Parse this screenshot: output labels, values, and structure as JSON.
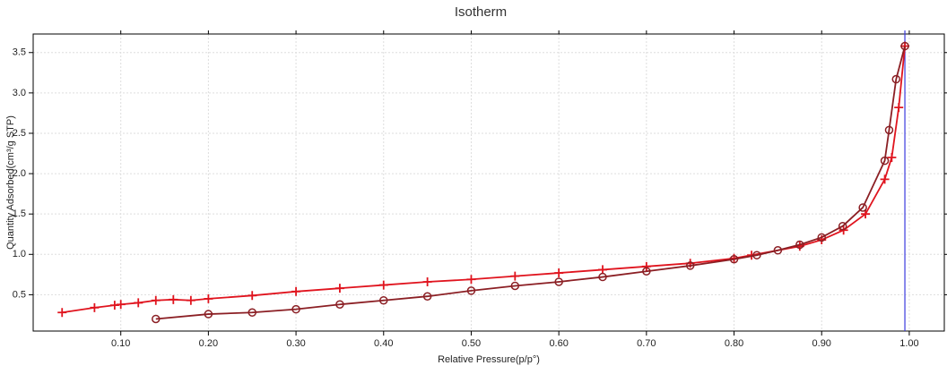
{
  "chart_data": {
    "type": "line",
    "title": "Isotherm",
    "xlabel": "Relative Pressure(p/p°)",
    "ylabel": "Quantity Adsorbed(cm³/g STP)",
    "xlim": [
      0,
      1.04
    ],
    "ylim": [
      0.05,
      3.73
    ],
    "xticks": [
      {
        "value": 0.1,
        "label": "0.10"
      },
      {
        "value": 0.2,
        "label": "0.20"
      },
      {
        "value": 0.3,
        "label": "0.30"
      },
      {
        "value": 0.4,
        "label": "0.40"
      },
      {
        "value": 0.5,
        "label": "0.50"
      },
      {
        "value": 0.6,
        "label": "0.60"
      },
      {
        "value": 0.7,
        "label": "0.70"
      },
      {
        "value": 0.8,
        "label": "0.80"
      },
      {
        "value": 0.9,
        "label": "0.90"
      },
      {
        "value": 1.0,
        "label": "1.00"
      }
    ],
    "yticks": [
      0.5,
      {
        "value": 1.0,
        "label": "1.0"
      },
      1.5,
      {
        "value": 2.0,
        "label": "2.0"
      },
      2.5,
      {
        "value": 3.0,
        "label": "3.0"
      },
      3.5
    ],
    "grid": true,
    "vline": {
      "value": 0.995,
      "color": "#3b3bdd"
    },
    "series": [
      {
        "color": "#e0141e",
        "marker": "plus",
        "x": [
          0.033,
          0.07,
          0.093,
          0.1,
          0.12,
          0.14,
          0.16,
          0.18,
          0.2,
          0.25,
          0.3,
          0.35,
          0.4,
          0.45,
          0.5,
          0.55,
          0.6,
          0.65,
          0.7,
          0.75,
          0.8,
          0.82,
          0.875,
          0.9,
          0.925,
          0.95,
          0.972,
          0.98,
          0.988,
          0.995
        ],
        "values": [
          0.28,
          0.34,
          0.37,
          0.38,
          0.4,
          0.43,
          0.44,
          0.43,
          0.45,
          0.49,
          0.54,
          0.58,
          0.62,
          0.66,
          0.69,
          0.73,
          0.77,
          0.81,
          0.85,
          0.89,
          0.95,
          0.99,
          1.1,
          1.18,
          1.3,
          1.5,
          1.93,
          2.2,
          2.82,
          3.58
        ]
      },
      {
        "color": "#8b1f24",
        "marker": "circle",
        "x": [
          0.995,
          0.985,
          0.977,
          0.972,
          0.947,
          0.924,
          0.9,
          0.875,
          0.85,
          0.826,
          0.8,
          0.75,
          0.7,
          0.65,
          0.6,
          0.55,
          0.5,
          0.45,
          0.4,
          0.35,
          0.3,
          0.25,
          0.2,
          0.14
        ],
        "values": [
          3.58,
          3.17,
          2.54,
          2.16,
          1.58,
          1.35,
          1.21,
          1.12,
          1.05,
          0.99,
          0.94,
          0.86,
          0.79,
          0.72,
          0.66,
          0.61,
          0.55,
          0.48,
          0.43,
          0.38,
          0.32,
          0.28,
          0.26,
          0.2
        ]
      }
    ]
  }
}
